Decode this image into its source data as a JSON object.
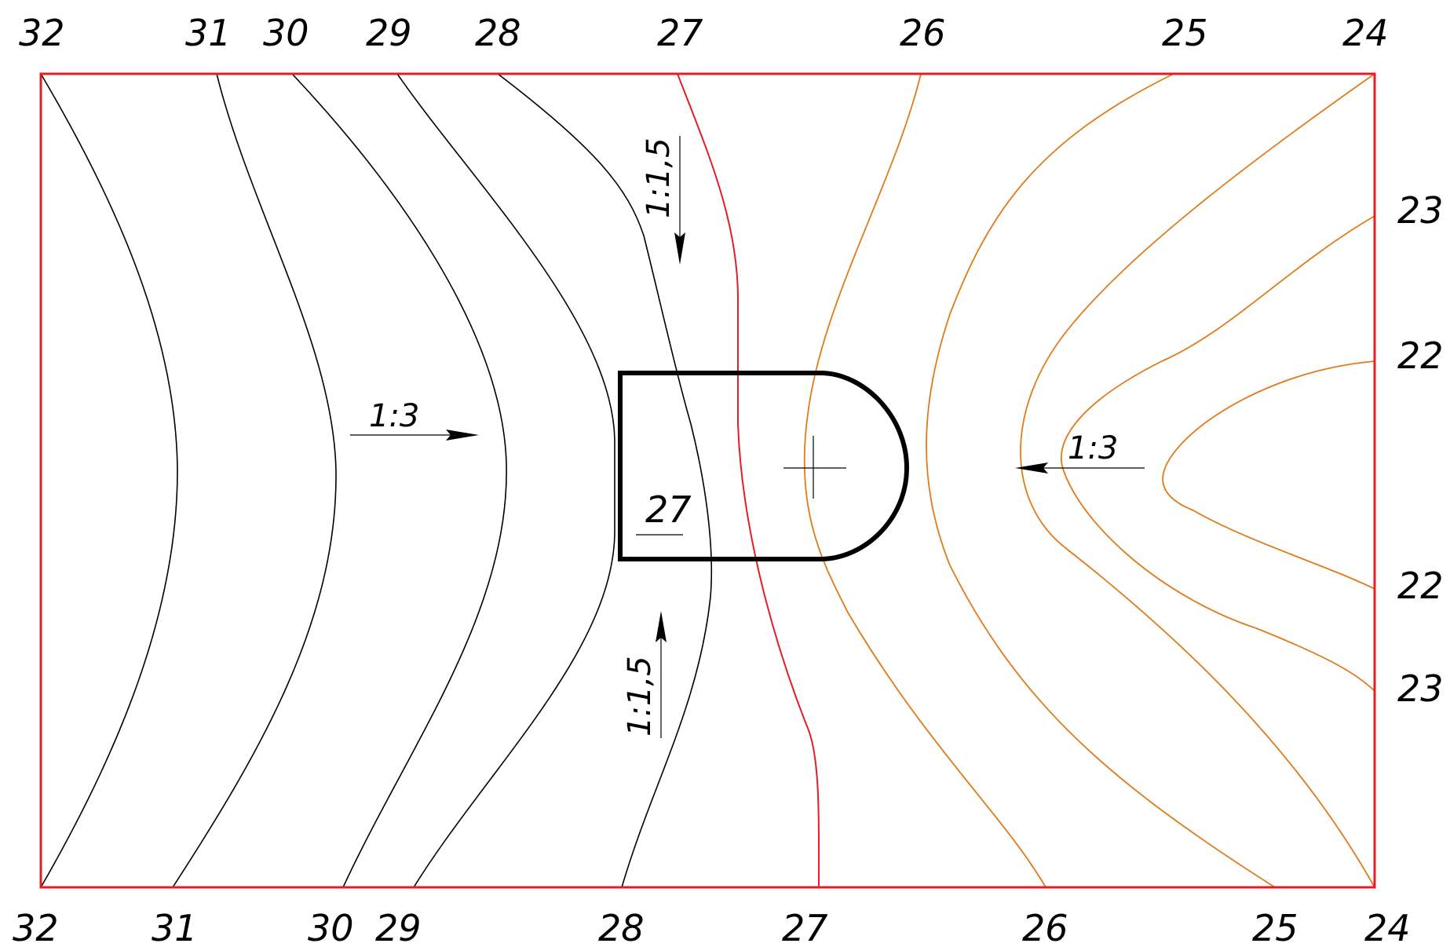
{
  "colors": {
    "frame": "#e31e24",
    "contour_black": "#000000",
    "contour_red": "#e31e24",
    "contour_orange": "#e07b1a",
    "platform": "#000000"
  },
  "top_labels": [
    "32",
    "31",
    "30",
    "29",
    "28",
    "27",
    "26",
    "25",
    "24"
  ],
  "bottom_labels": [
    "32",
    "31",
    "30",
    "29",
    "28",
    "27",
    "26",
    "25",
    "24"
  ],
  "right_labels": [
    "23",
    "22",
    "22",
    "23"
  ],
  "slopes": {
    "left": "1:3",
    "right": "1:3",
    "top": "1:1,5",
    "bottom": "1:1,5"
  },
  "platform_elevation": "27"
}
